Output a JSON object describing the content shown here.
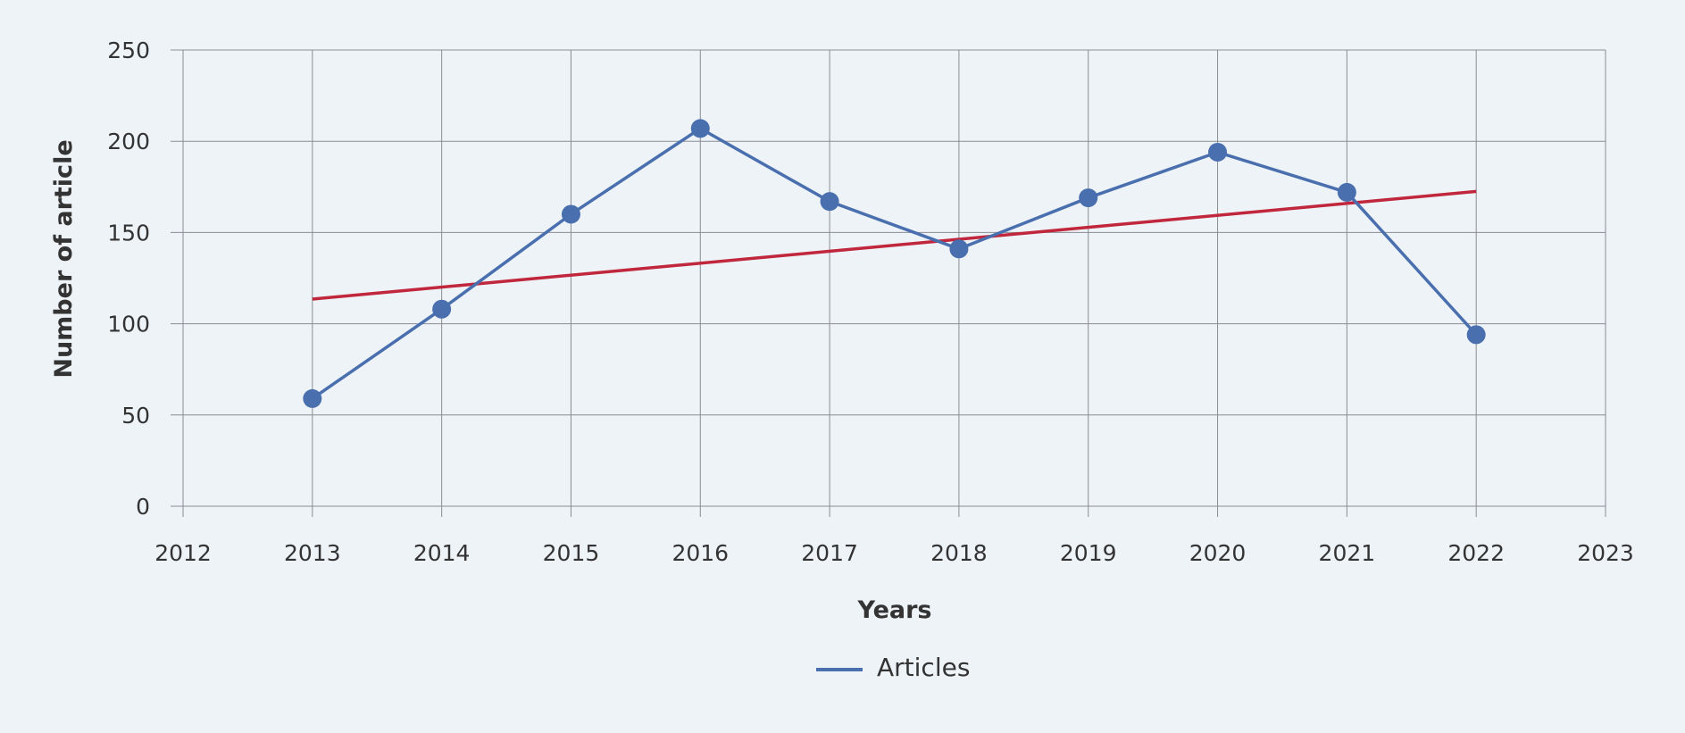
{
  "chart_data": {
    "type": "line",
    "title": "",
    "xlabel": "Years",
    "ylabel": "Number of article",
    "xlim": [
      2012,
      2023
    ],
    "ylim": [
      0,
      250
    ],
    "x_ticks": [
      "2012",
      "2013",
      "2014",
      "2015",
      "2016",
      "2017",
      "2018",
      "2019",
      "2020",
      "2021",
      "2022",
      "2023"
    ],
    "y_ticks": [
      "0",
      "50",
      "100",
      "150",
      "200",
      "250"
    ],
    "grid": true,
    "legend_position": "bottom",
    "series": [
      {
        "name": "Articles",
        "color": "#4a6fae",
        "markers": true,
        "x": [
          2013,
          2014,
          2015,
          2016,
          2017,
          2018,
          2019,
          2020,
          2021,
          2022
        ],
        "values": [
          59,
          108,
          160,
          207,
          167,
          141,
          169,
          194,
          172,
          94
        ]
      }
    ],
    "trendline": {
      "color": "#c0273c",
      "x": [
        2013,
        2022
      ],
      "values": [
        113.5,
        172.5
      ]
    }
  }
}
